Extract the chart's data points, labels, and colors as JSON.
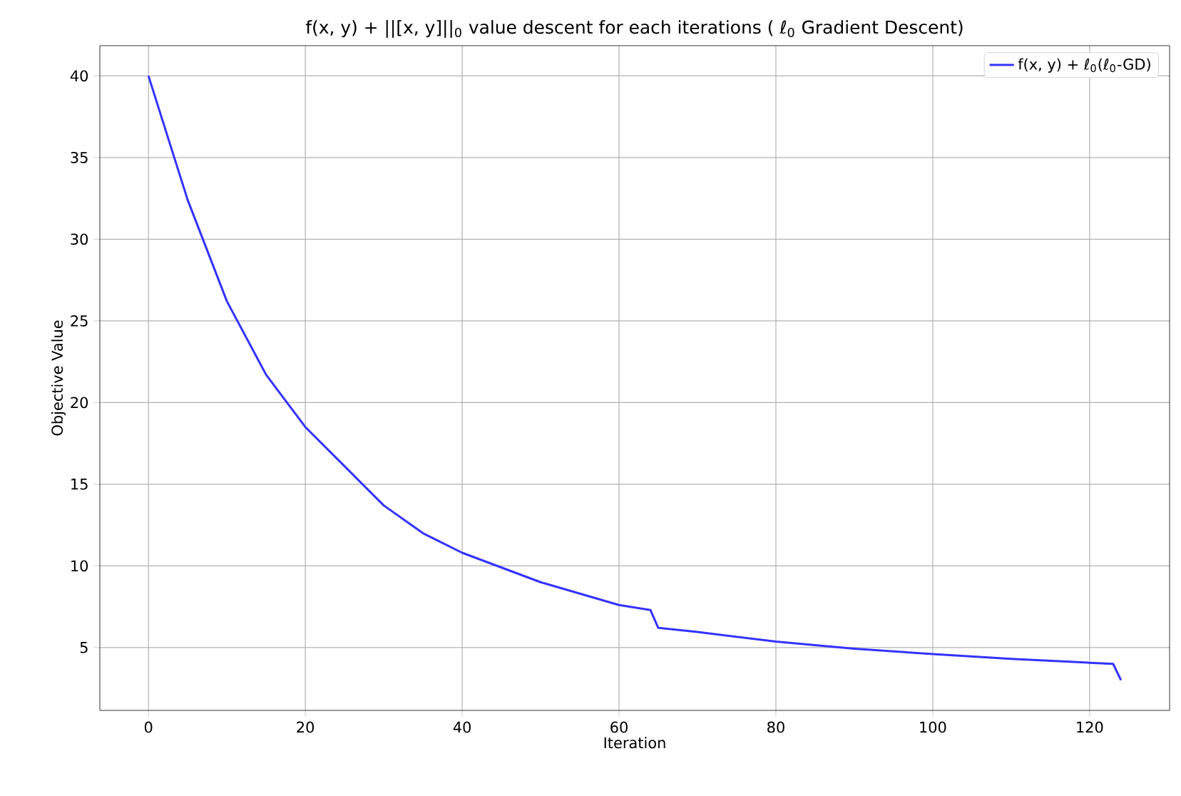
{
  "chart_data": {
    "type": "line",
    "title": "f(x, y) + ||[x, y]||$_{0}$ value descent for each iterations ( ℓ$_{0}$ Gradient Descent)",
    "xlabel": "Iteration",
    "ylabel": "Objective Value",
    "series": [
      {
        "name": "f(x, y) + ℓ$_{0}$(ℓ$_{0}$-GD)",
        "color": "#3333ff",
        "x": [
          0,
          5,
          10,
          15,
          20,
          25,
          30,
          35,
          40,
          50,
          60,
          64,
          65,
          70,
          80,
          90,
          100,
          110,
          120,
          123,
          124
        ],
        "values": [
          40,
          32.4,
          26.2,
          21.7,
          18.5,
          16.1,
          13.7,
          12.0,
          10.8,
          9.0,
          7.6,
          7.3,
          6.2,
          5.95,
          5.36,
          4.93,
          4.6,
          4.3,
          4.07,
          4.0,
          3.0
        ]
      }
    ],
    "xlim": [
      -6.2,
      130.2
    ],
    "ylim": [
      1.15,
      41.85
    ],
    "xticks": [
      0,
      20,
      40,
      60,
      80,
      100,
      120
    ],
    "yticks": [
      5,
      10,
      15,
      20,
      25,
      30,
      35,
      40
    ],
    "grid": true,
    "legend": "top right",
    "line_style": "solid",
    "marker": "none"
  }
}
